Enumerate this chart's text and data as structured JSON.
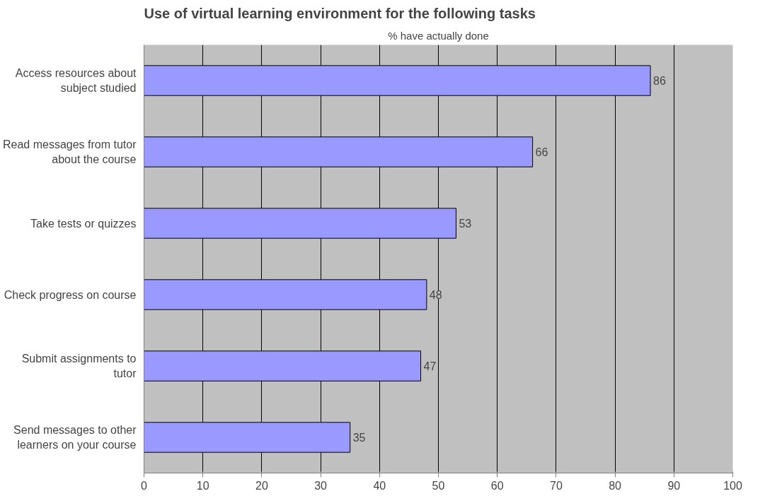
{
  "chart_data": {
    "type": "bar",
    "orientation": "horizontal",
    "title": "Use of virtual learning environment for the following tasks",
    "subtitle": "% have actually done",
    "categories": [
      "Access resources about subject studied",
      "Read messages from tutor about the course",
      "Take tests or quizzes",
      "Check progress on course",
      "Submit assignments to tutor",
      "Send messages to other learners on your course"
    ],
    "values": [
      86,
      66,
      53,
      48,
      47,
      35
    ],
    "color": "#9999ff",
    "xlim": [
      0,
      100
    ],
    "xticks": [
      0,
      10,
      20,
      30,
      40,
      50,
      60,
      70,
      80,
      90,
      100
    ],
    "grid": "x",
    "data_labels": true
  }
}
